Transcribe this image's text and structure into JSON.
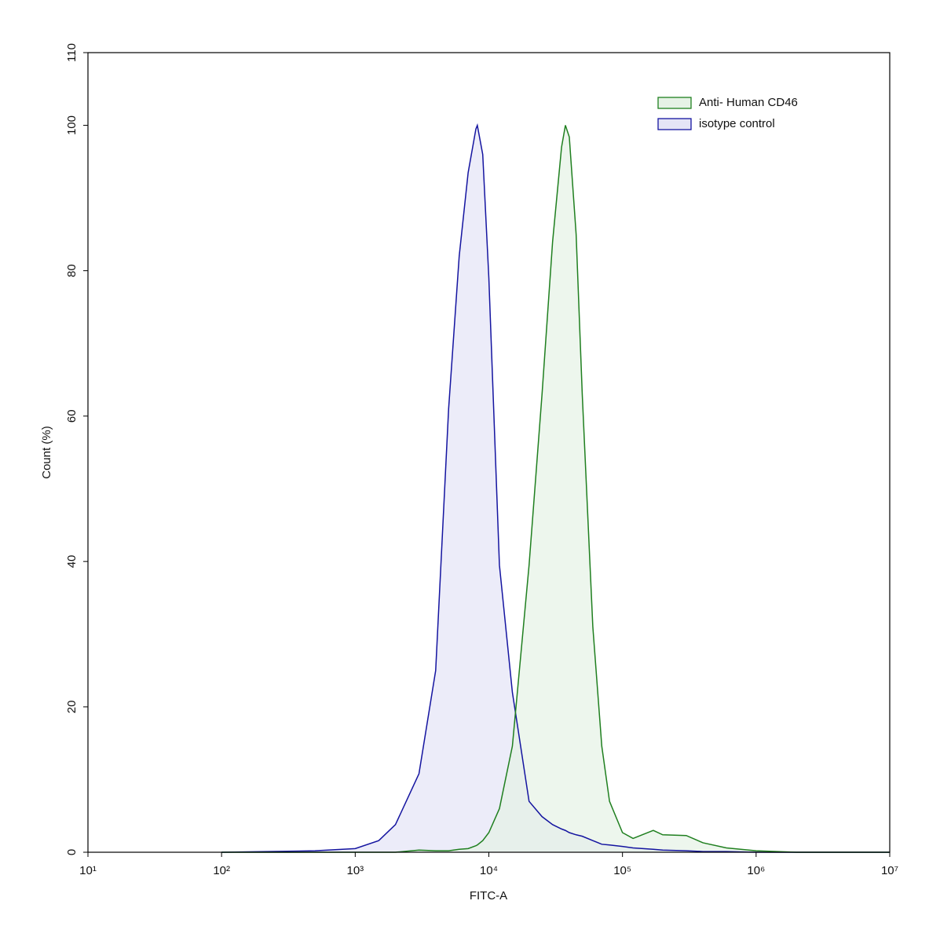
{
  "chart_data": {
    "type": "area",
    "xlabel": "FITC-A",
    "ylabel": "Count  (%)",
    "xscale": "log",
    "x": [
      100,
      500,
      1000,
      1500,
      2000,
      3000,
      4000,
      5000,
      6000,
      7000,
      8000,
      8200,
      9000,
      10000,
      12000,
      15000,
      20000,
      25000,
      30000,
      35000,
      37400,
      40000,
      45000,
      50000,
      60000,
      70000,
      80000,
      100000,
      120000,
      170000,
      200000,
      300000,
      400000,
      600000,
      1000000,
      2000000,
      10000000
    ],
    "series": [
      {
        "name": "Anti- Human CD46",
        "color": "#1f7f1f",
        "fill": "#e6f2e6",
        "values": [
          0,
          0,
          0,
          0,
          0,
          0.3,
          0.2,
          0.2,
          0.4,
          0.5,
          0.9,
          1,
          1.6,
          2.7,
          6,
          14.6,
          39.5,
          63,
          84,
          97,
          100,
          98.4,
          85,
          63,
          31,
          14.6,
          7,
          2.7,
          1.9,
          3,
          2.4,
          2.3,
          1.3,
          0.6,
          0.2,
          0,
          0
        ]
      },
      {
        "name": "isotype control",
        "color": "#1414a0",
        "fill": "#e4e4f6",
        "values": [
          0,
          0.2,
          0.5,
          1.6,
          3.8,
          10.8,
          25,
          61,
          82,
          93.5,
          99.5,
          100,
          96,
          79,
          39.5,
          22,
          7,
          4.9,
          3.8,
          3.2,
          3,
          2.7,
          2.4,
          2.2,
          1.6,
          1.1,
          1,
          0.8,
          0.6,
          0.4,
          0.3,
          0.2,
          0.1,
          0.1,
          0,
          0,
          0
        ]
      }
    ],
    "xlim": [
      10,
      10000000
    ],
    "xticks": [
      {
        "value": 10,
        "label": "10¹"
      },
      {
        "value": 100,
        "label": "10²"
      },
      {
        "value": 1000,
        "label": "10³"
      },
      {
        "value": 10000,
        "label": "10⁴"
      },
      {
        "value": 100000,
        "label": "10⁵"
      },
      {
        "value": 1000000,
        "label": "10⁶"
      },
      {
        "value": 10000000,
        "label": "10⁷"
      }
    ],
    "ylim": [
      0,
      110
    ],
    "yticks": [
      0,
      20,
      40,
      60,
      80,
      100,
      110
    ],
    "legend": "top-right"
  }
}
